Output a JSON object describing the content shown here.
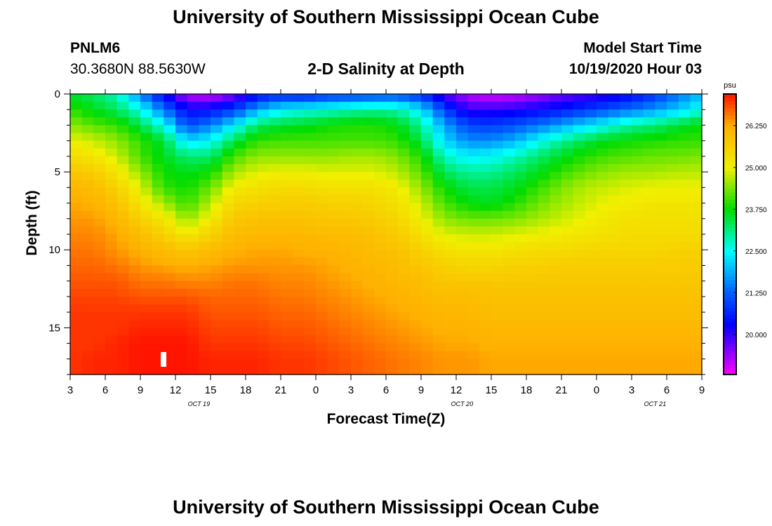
{
  "header": {
    "title": "University of Southern Mississippi Ocean Cube",
    "station_id": "PNLM6",
    "coordinates": "30.3680N 88.5630W",
    "subtitle": "2-D Salinity at Depth",
    "model_start_label": "Model Start Time",
    "model_start_value": "10/19/2020 Hour 03"
  },
  "footer": {
    "title": "University of Southern Mississippi Ocean Cube"
  },
  "chart_data": {
    "type": "heatmap",
    "title": "2-D Salinity at Depth",
    "xlabel": "Forecast Time(Z)",
    "ylabel": "Depth (ft)",
    "ylim": [
      0,
      18
    ],
    "x_hours_range": [
      0,
      54
    ],
    "x_tick_labels": [
      "3",
      "6",
      "9",
      "12",
      "15",
      "18",
      "21",
      "0",
      "3",
      "6",
      "9",
      "12",
      "15",
      "18",
      "21",
      "0",
      "3",
      "6",
      "9"
    ],
    "y_ticks": [
      0,
      5,
      10,
      15
    ],
    "date_labels": [
      {
        "text": "OCT 19",
        "hour": 11
      },
      {
        "text": "OCT 20",
        "hour": 33.5
      },
      {
        "text": "OCT 21",
        "hour": 50
      }
    ],
    "colorbar": {
      "unit": "psu",
      "min": 18.8,
      "max": 27.2,
      "tick_values": [
        20.0,
        21.25,
        22.5,
        23.75,
        25.0,
        26.25
      ],
      "tick_labels": [
        "20.000",
        "21.250",
        "22.500",
        "23.750",
        "25.000",
        "26.250"
      ]
    },
    "grid_hours": [
      0,
      2,
      4,
      6,
      8,
      10,
      12,
      14,
      16,
      18,
      20,
      22,
      24,
      26,
      28,
      30,
      32,
      34,
      36,
      38,
      40,
      42,
      44,
      46,
      48,
      50,
      52,
      54
    ],
    "grid_depths": [
      0,
      1,
      2,
      3,
      4,
      5,
      6,
      7,
      8,
      9,
      10,
      11,
      12,
      13,
      14,
      15,
      16,
      17,
      18
    ],
    "salinity_psu": [
      [
        23.5,
        23.3,
        22.8,
        21.5,
        20.2,
        19.2,
        19.0,
        19.5,
        20.3,
        20.6,
        20.4,
        20.7,
        20.8,
        20.9,
        21.0,
        20.6,
        19.8,
        19.2,
        19.0,
        19.1,
        19.3,
        19.6,
        19.8,
        20.0,
        20.3,
        20.8,
        21.4,
        22.0
      ],
      [
        24.0,
        23.6,
        23.3,
        22.6,
        21.4,
        20.3,
        20.4,
        20.9,
        21.8,
        22.4,
        22.6,
        22.7,
        22.9,
        23.0,
        22.9,
        22.3,
        20.9,
        20.0,
        20.0,
        20.1,
        20.3,
        20.5,
        20.8,
        21.1,
        21.4,
        21.7,
        22.1,
        22.6
      ],
      [
        24.5,
        24.2,
        24.0,
        23.4,
        22.6,
        21.0,
        21.5,
        22.3,
        23.3,
        23.5,
        23.6,
        23.8,
        23.9,
        23.9,
        23.7,
        23.0,
        21.8,
        21.0,
        20.9,
        21.1,
        21.4,
        21.8,
        22.2,
        22.6,
        23.0,
        23.2,
        23.5,
        23.8
      ],
      [
        25.0,
        24.8,
        24.5,
        24.0,
        23.5,
        22.2,
        22.5,
        23.4,
        24.0,
        24.1,
        24.1,
        24.1,
        24.1,
        24.1,
        24.0,
        23.4,
        22.2,
        21.6,
        21.6,
        21.9,
        22.5,
        23.0,
        23.4,
        23.7,
        23.8,
        23.9,
        24.0,
        24.0
      ],
      [
        25.4,
        25.2,
        24.8,
        24.1,
        23.6,
        23.2,
        23.2,
        24.1,
        24.5,
        24.5,
        24.5,
        24.5,
        24.6,
        24.6,
        24.4,
        23.9,
        22.8,
        22.4,
        22.5,
        22.8,
        23.2,
        23.6,
        23.9,
        24.1,
        24.2,
        24.3,
        24.3,
        24.4
      ],
      [
        25.8,
        25.7,
        25.2,
        24.5,
        23.8,
        23.6,
        23.8,
        24.6,
        24.9,
        25.0,
        25.0,
        24.9,
        24.9,
        24.9,
        24.7,
        24.2,
        23.3,
        23.0,
        23.0,
        23.3,
        23.6,
        24.0,
        24.3,
        24.5,
        24.6,
        24.6,
        24.7,
        24.7
      ],
      [
        26.1,
        26.0,
        25.6,
        24.9,
        24.0,
        23.8,
        24.3,
        25.1,
        25.3,
        25.4,
        25.4,
        25.3,
        25.3,
        25.3,
        25.1,
        24.5,
        23.8,
        23.4,
        23.4,
        23.6,
        24.0,
        24.4,
        24.7,
        24.8,
        24.9,
        25.0,
        25.0,
        25.0
      ],
      [
        26.3,
        26.2,
        25.9,
        25.2,
        24.6,
        24.0,
        24.7,
        25.5,
        25.6,
        25.7,
        25.7,
        25.6,
        25.6,
        25.5,
        25.3,
        24.8,
        24.1,
        23.7,
        23.6,
        23.9,
        24.3,
        24.6,
        24.8,
        25.0,
        25.1,
        25.2,
        25.2,
        25.2
      ],
      [
        26.4,
        26.4,
        26.1,
        25.6,
        25.2,
        24.5,
        25.1,
        25.8,
        25.9,
        25.9,
        25.9,
        25.8,
        25.8,
        25.7,
        25.5,
        25.0,
        24.5,
        24.3,
        24.3,
        24.4,
        24.6,
        24.8,
        25.0,
        25.2,
        25.3,
        25.3,
        25.3,
        25.3
      ],
      [
        26.5,
        26.5,
        26.3,
        26.0,
        25.6,
        25.1,
        25.6,
        26.0,
        26.1,
        26.1,
        26.1,
        26.0,
        26.0,
        25.9,
        25.7,
        25.3,
        24.9,
        24.8,
        24.8,
        24.9,
        25.0,
        25.1,
        25.2,
        25.3,
        25.4,
        25.4,
        25.4,
        25.4
      ],
      [
        26.6,
        26.6,
        26.4,
        26.2,
        26.0,
        25.8,
        26.0,
        26.2,
        26.3,
        26.3,
        26.2,
        26.2,
        26.1,
        26.0,
        25.9,
        25.6,
        25.3,
        25.2,
        25.2,
        25.3,
        25.4,
        25.4,
        25.5,
        25.5,
        25.5,
        25.5,
        25.6,
        25.6
      ],
      [
        26.7,
        26.7,
        26.6,
        26.4,
        26.3,
        26.2,
        26.3,
        26.4,
        26.4,
        26.4,
        26.4,
        26.3,
        26.2,
        26.1,
        26.0,
        25.8,
        25.6,
        25.5,
        25.5,
        25.6,
        25.6,
        25.7,
        25.7,
        25.7,
        25.7,
        25.7,
        25.7,
        25.7
      ],
      [
        26.8,
        26.8,
        26.8,
        26.6,
        26.6,
        26.5,
        26.5,
        26.6,
        26.6,
        26.5,
        26.5,
        26.4,
        26.3,
        26.2,
        26.1,
        26.0,
        25.8,
        25.8,
        25.8,
        25.8,
        25.8,
        25.8,
        25.8,
        25.8,
        25.8,
        25.8,
        25.8,
        25.8
      ],
      [
        26.9,
        26.9,
        26.9,
        26.8,
        26.8,
        26.8,
        26.7,
        26.7,
        26.7,
        26.6,
        26.6,
        26.5,
        26.4,
        26.3,
        26.2,
        26.1,
        26.0,
        26.0,
        25.9,
        25.9,
        25.9,
        25.9,
        25.9,
        25.9,
        25.9,
        25.9,
        25.9,
        25.9
      ],
      [
        27.0,
        27.0,
        27.0,
        27.0,
        27.0,
        27.0,
        26.8,
        26.8,
        26.8,
        26.7,
        26.7,
        26.6,
        26.5,
        26.4,
        26.3,
        26.2,
        26.1,
        26.1,
        26.0,
        26.0,
        26.0,
        26.0,
        26.0,
        26.0,
        26.0,
        26.0,
        26.0,
        26.0
      ],
      [
        27.0,
        27.0,
        27.0,
        27.1,
        27.1,
        27.1,
        26.9,
        26.9,
        26.9,
        26.8,
        26.8,
        26.7,
        26.6,
        26.5,
        26.4,
        26.3,
        26.2,
        26.2,
        26.1,
        26.1,
        26.1,
        26.1,
        26.1,
        26.1,
        26.1,
        26.1,
        26.1,
        26.1
      ],
      [
        27.0,
        27.0,
        27.1,
        27.2,
        27.2,
        27.2,
        27.0,
        27.0,
        27.0,
        26.9,
        26.9,
        26.8,
        26.7,
        26.6,
        26.5,
        26.4,
        26.3,
        26.3,
        26.2,
        26.2,
        26.2,
        26.2,
        26.2,
        26.2,
        26.2,
        26.2,
        26.2,
        26.2
      ],
      [
        27.0,
        27.1,
        27.1,
        27.2,
        27.2,
        27.2,
        27.1,
        27.1,
        27.1,
        27.0,
        27.0,
        26.9,
        26.8,
        26.7,
        26.6,
        26.5,
        26.4,
        26.4,
        26.3,
        26.3,
        26.3,
        26.3,
        26.3,
        26.3,
        26.3,
        26.3,
        26.3,
        26.3
      ],
      [
        27.0,
        27.1,
        27.1,
        27.2,
        27.2,
        27.2,
        27.1,
        27.1,
        27.1,
        27.0,
        27.0,
        26.9,
        26.8,
        26.7,
        26.6,
        26.5,
        26.4,
        26.4,
        26.3,
        26.3,
        26.3,
        26.3,
        26.3,
        26.3,
        26.3,
        26.3,
        26.3,
        26.3
      ]
    ]
  }
}
